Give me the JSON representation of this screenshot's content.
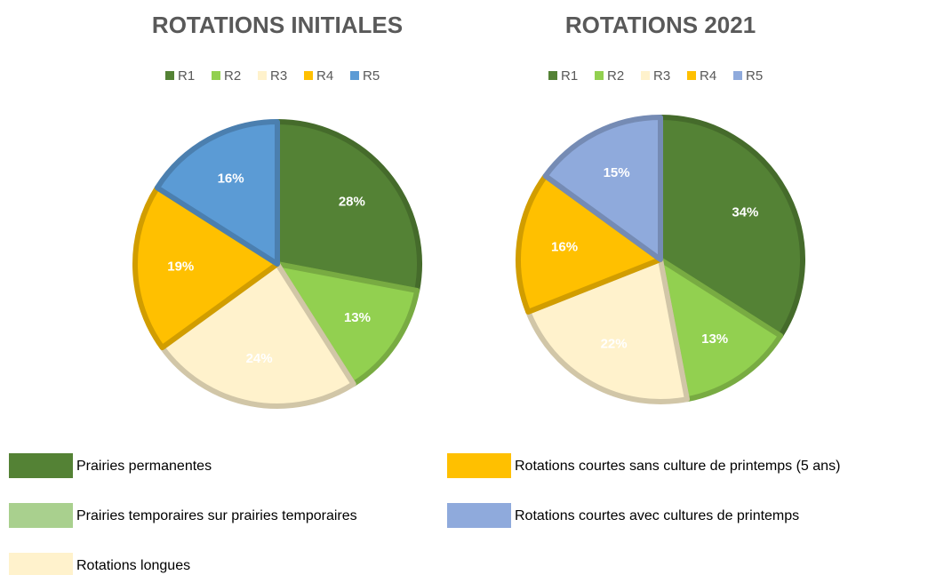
{
  "chart_data": [
    {
      "type": "pie",
      "title": "ROTATIONS INITIALES",
      "categories": [
        "R1",
        "R2",
        "R3",
        "R4",
        "R5"
      ],
      "values": [
        28,
        13,
        24,
        19,
        16
      ],
      "value_labels": [
        "28%",
        "13%",
        "24%",
        "19%",
        "16%"
      ],
      "colors": [
        "#548235",
        "#92d050",
        "#fff2cc",
        "#ffc000",
        "#5b9bd5"
      ],
      "legend": "top"
    },
    {
      "type": "pie",
      "title": "ROTATIONS 2021",
      "categories": [
        "R1",
        "R2",
        "R3",
        "R4",
        "R5"
      ],
      "values": [
        34,
        13,
        22,
        16,
        15
      ],
      "value_labels": [
        "34%",
        "13%",
        "22%",
        "16%",
        "15%"
      ],
      "colors": [
        "#548235",
        "#92d050",
        "#fff2cc",
        "#ffc000",
        "#8faadc"
      ],
      "legend": "top"
    }
  ],
  "legend": [
    {
      "label": "Prairies permanentes",
      "color": "#548235"
    },
    {
      "label": "Prairies temporaires sur prairies temporaires",
      "color": "#a9d08e"
    },
    {
      "label": "Rotations longues",
      "color": "#fff2cc"
    },
    {
      "label": "Rotations courtes sans culture de printemps (5 ans)",
      "color": "#ffc000"
    },
    {
      "label": "Rotations courtes avec cultures de printemps",
      "color": "#8faadc"
    }
  ]
}
